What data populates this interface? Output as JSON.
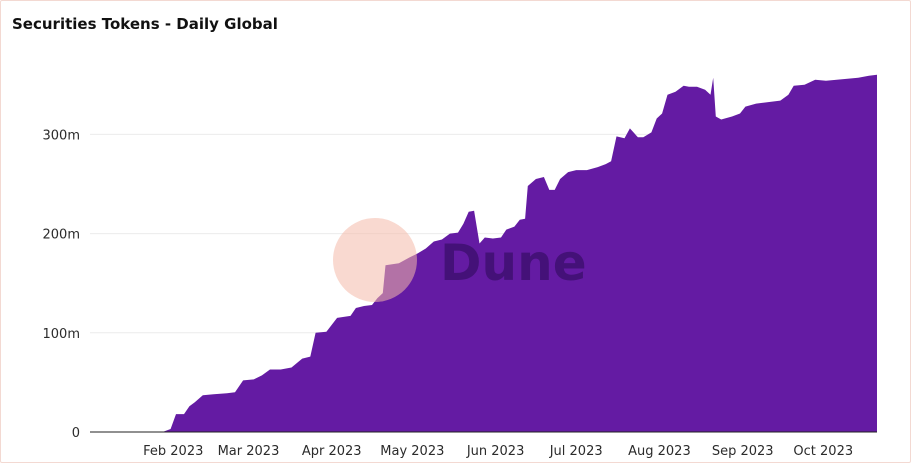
{
  "chart_data": {
    "type": "area",
    "title": "Securities Tokens - Daily Global",
    "xlabel": "",
    "ylabel": "",
    "ylim": [
      0,
      380
    ],
    "y_unit": "m",
    "y_ticks": [
      {
        "value": 0,
        "label": "0"
      },
      {
        "value": 100,
        "label": "100m"
      },
      {
        "value": 200,
        "label": "200m"
      },
      {
        "value": 300,
        "label": "300m"
      }
    ],
    "x_start": "2023-01-01",
    "x_end": "2023-10-21",
    "x_ticks": [
      {
        "date": "2023-02-01",
        "label": "Feb 2023"
      },
      {
        "date": "2023-03-01",
        "label": "Mar 2023"
      },
      {
        "date": "2023-04-01",
        "label": "Apr 2023"
      },
      {
        "date": "2023-05-01",
        "label": "May 2023"
      },
      {
        "date": "2023-06-01",
        "label": "Jun 2023"
      },
      {
        "date": "2023-07-01",
        "label": "Jul 2023"
      },
      {
        "date": "2023-08-01",
        "label": "Aug 2023"
      },
      {
        "date": "2023-09-01",
        "label": "Sep 2023"
      },
      {
        "date": "2023-10-01",
        "label": "Oct 2023"
      }
    ],
    "grid": true,
    "color": "#641ba3",
    "series": [
      {
        "name": "",
        "points": [
          [
            "2023-01-01",
            0
          ],
          [
            "2023-01-28",
            0
          ],
          [
            "2023-01-31",
            3
          ],
          [
            "2023-02-02",
            18
          ],
          [
            "2023-02-05",
            18
          ],
          [
            "2023-02-07",
            26
          ],
          [
            "2023-02-09",
            30
          ],
          [
            "2023-02-12",
            37
          ],
          [
            "2023-02-16",
            38
          ],
          [
            "2023-02-21",
            39
          ],
          [
            "2023-02-24",
            40
          ],
          [
            "2023-02-27",
            52
          ],
          [
            "2023-03-03",
            53
          ],
          [
            "2023-03-06",
            57
          ],
          [
            "2023-03-09",
            63
          ],
          [
            "2023-03-13",
            63
          ],
          [
            "2023-03-17",
            65
          ],
          [
            "2023-03-21",
            74
          ],
          [
            "2023-03-24",
            76
          ],
          [
            "2023-03-26",
            100
          ],
          [
            "2023-03-30",
            101
          ],
          [
            "2023-04-01",
            108
          ],
          [
            "2023-04-03",
            115
          ],
          [
            "2023-04-08",
            117
          ],
          [
            "2023-04-10",
            125
          ],
          [
            "2023-04-13",
            127
          ],
          [
            "2023-04-16",
            128
          ],
          [
            "2023-04-18",
            135
          ],
          [
            "2023-04-20",
            140
          ],
          [
            "2023-04-21",
            168
          ],
          [
            "2023-04-26",
            170
          ],
          [
            "2023-04-30",
            176
          ],
          [
            "2023-05-03",
            180
          ],
          [
            "2023-05-06",
            185
          ],
          [
            "2023-05-09",
            192
          ],
          [
            "2023-05-12",
            194
          ],
          [
            "2023-05-15",
            200
          ],
          [
            "2023-05-18",
            201
          ],
          [
            "2023-05-20",
            210
          ],
          [
            "2023-05-22",
            222
          ],
          [
            "2023-05-24",
            223
          ],
          [
            "2023-05-26",
            190
          ],
          [
            "2023-05-28",
            196
          ],
          [
            "2023-05-31",
            195
          ],
          [
            "2023-06-03",
            196
          ],
          [
            "2023-06-05",
            204
          ],
          [
            "2023-06-08",
            207
          ],
          [
            "2023-06-10",
            214
          ],
          [
            "2023-06-12",
            215
          ],
          [
            "2023-06-13",
            248
          ],
          [
            "2023-06-16",
            255
          ],
          [
            "2023-06-19",
            257
          ],
          [
            "2023-06-21",
            244
          ],
          [
            "2023-06-23",
            244
          ],
          [
            "2023-06-25",
            255
          ],
          [
            "2023-06-28",
            262
          ],
          [
            "2023-07-01",
            264
          ],
          [
            "2023-07-05",
            264
          ],
          [
            "2023-07-09",
            267
          ],
          [
            "2023-07-12",
            270
          ],
          [
            "2023-07-14",
            273
          ],
          [
            "2023-07-16",
            298
          ],
          [
            "2023-07-19",
            296
          ],
          [
            "2023-07-21",
            306
          ],
          [
            "2023-07-24",
            297
          ],
          [
            "2023-07-26",
            297
          ],
          [
            "2023-07-29",
            302
          ],
          [
            "2023-07-31",
            316
          ],
          [
            "2023-08-02",
            321
          ],
          [
            "2023-08-04",
            340
          ],
          [
            "2023-08-07",
            343
          ],
          [
            "2023-08-10",
            349
          ],
          [
            "2023-08-12",
            348
          ],
          [
            "2023-08-15",
            348
          ],
          [
            "2023-08-18",
            345
          ],
          [
            "2023-08-20",
            340
          ],
          [
            "2023-08-21",
            357
          ],
          [
            "2023-08-22",
            318
          ],
          [
            "2023-08-24",
            315
          ],
          [
            "2023-08-28",
            318
          ],
          [
            "2023-08-31",
            321
          ],
          [
            "2023-09-02",
            328
          ],
          [
            "2023-09-06",
            331
          ],
          [
            "2023-09-09",
            332
          ],
          [
            "2023-09-12",
            333
          ],
          [
            "2023-09-15",
            334
          ],
          [
            "2023-09-18",
            340
          ],
          [
            "2023-09-20",
            349
          ],
          [
            "2023-09-24",
            350
          ],
          [
            "2023-09-28",
            355
          ],
          [
            "2023-10-02",
            354
          ],
          [
            "2023-10-06",
            355
          ],
          [
            "2023-10-10",
            356
          ],
          [
            "2023-10-14",
            357
          ],
          [
            "2023-10-18",
            359
          ],
          [
            "2023-10-21",
            360
          ]
        ]
      }
    ],
    "watermark": "Dune"
  }
}
